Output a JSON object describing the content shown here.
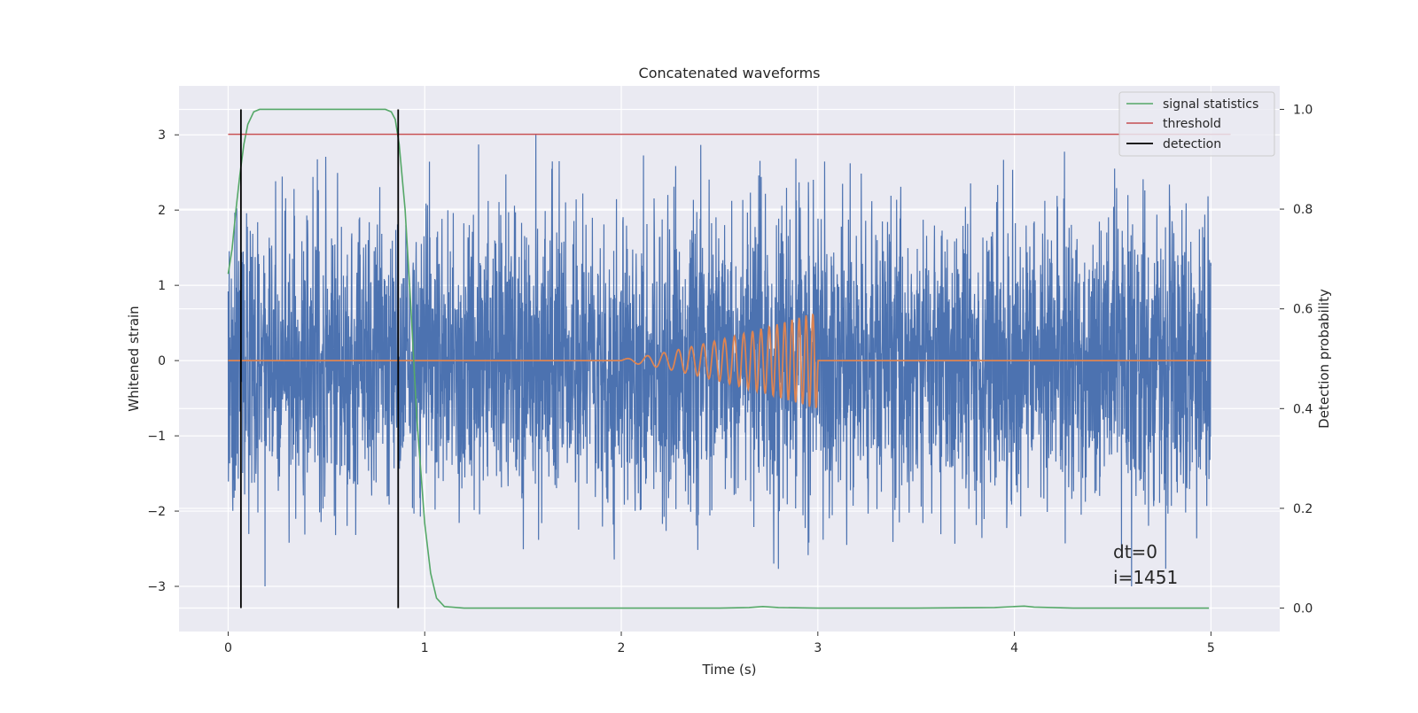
{
  "chart_data": {
    "type": "line",
    "title": "Concatenated waveforms",
    "xlabel": "Time (s)",
    "ylabel": "Whitened strain",
    "ylabel_right": "Detection probability",
    "xlim": [
      -0.25,
      5.35
    ],
    "ylim": [
      -3.6,
      3.65
    ],
    "ylim_right": [
      -0.047,
      1.047
    ],
    "xticks": [
      0,
      1,
      2,
      3,
      4,
      5
    ],
    "xtick_labels": [
      "0",
      "1",
      "2",
      "3",
      "4",
      "5"
    ],
    "yticks": [
      -3,
      -2,
      -1,
      0,
      1,
      2,
      3
    ],
    "ytick_labels": [
      "−3",
      "−2",
      "−1",
      "0",
      "1",
      "2",
      "3"
    ],
    "yticks_right": [
      0.0,
      0.2,
      0.4,
      0.6,
      0.8,
      1.0
    ],
    "ytick_labels_right": [
      "0.0",
      "0.2",
      "0.4",
      "0.6",
      "0.8",
      "1.0"
    ],
    "grid": true,
    "legend_position": "top-right",
    "colors": {
      "strain": "#4c72b0",
      "injection": "#dd8452",
      "signal_statistics": "#55a868",
      "threshold": "#c44e52",
      "detection": "#000000",
      "plot_bg": "#eaeaf2",
      "grid": "#ffffff"
    },
    "series": [
      {
        "name": "",
        "kind": "whitened_strain_noise",
        "x_range": [
          0,
          5
        ],
        "y_extremes": [
          -3.25,
          3.3
        ],
        "description_values": "dense noise, about 4000 samples, mostly within ±2.5"
      },
      {
        "name": "",
        "kind": "injected_chirp",
        "x_range": [
          0,
          5
        ],
        "chirp_start": 2.0,
        "chirp_end": 3.0,
        "amplitude_start": 0.02,
        "amplitude_end": 0.65,
        "frequency_start": 8,
        "frequency_end": 30
      },
      {
        "name": "signal statistics",
        "axis": "right",
        "x": [
          0.0,
          0.02,
          0.04,
          0.06,
          0.08,
          0.1,
          0.13,
          0.16,
          0.2,
          0.3,
          0.5,
          0.7,
          0.8,
          0.83,
          0.85,
          0.87,
          0.9,
          0.93,
          0.96,
          1.0,
          1.03,
          1.06,
          1.1,
          1.2,
          1.5,
          2.0,
          2.5,
          2.65,
          2.72,
          2.8,
          3.0,
          3.5,
          3.9,
          4.0,
          4.05,
          4.1,
          4.3,
          4.99
        ],
        "y": [
          0.67,
          0.72,
          0.8,
          0.87,
          0.93,
          0.97,
          0.995,
          1.0,
          1.0,
          1.0,
          1.0,
          1.0,
          1.0,
          0.995,
          0.98,
          0.93,
          0.8,
          0.6,
          0.38,
          0.17,
          0.07,
          0.02,
          0.003,
          0.0,
          0.0,
          0.0,
          0.0,
          0.001,
          0.003,
          0.001,
          0.0,
          0.0,
          0.001,
          0.003,
          0.004,
          0.002,
          0.0,
          0.0
        ]
      },
      {
        "name": "threshold",
        "axis": "right",
        "x": [
          0.0,
          5.1
        ],
        "y": [
          0.95,
          0.95
        ]
      },
      {
        "name": "detection",
        "axis": "right",
        "kind": "vertical_lines",
        "x": [
          0.065,
          0.865
        ],
        "y_range": [
          0.0,
          1.0
        ]
      }
    ],
    "legend": [
      "signal statistics",
      "threshold",
      "detection"
    ],
    "annotations": [
      "dt=0",
      "i=1451"
    ]
  }
}
